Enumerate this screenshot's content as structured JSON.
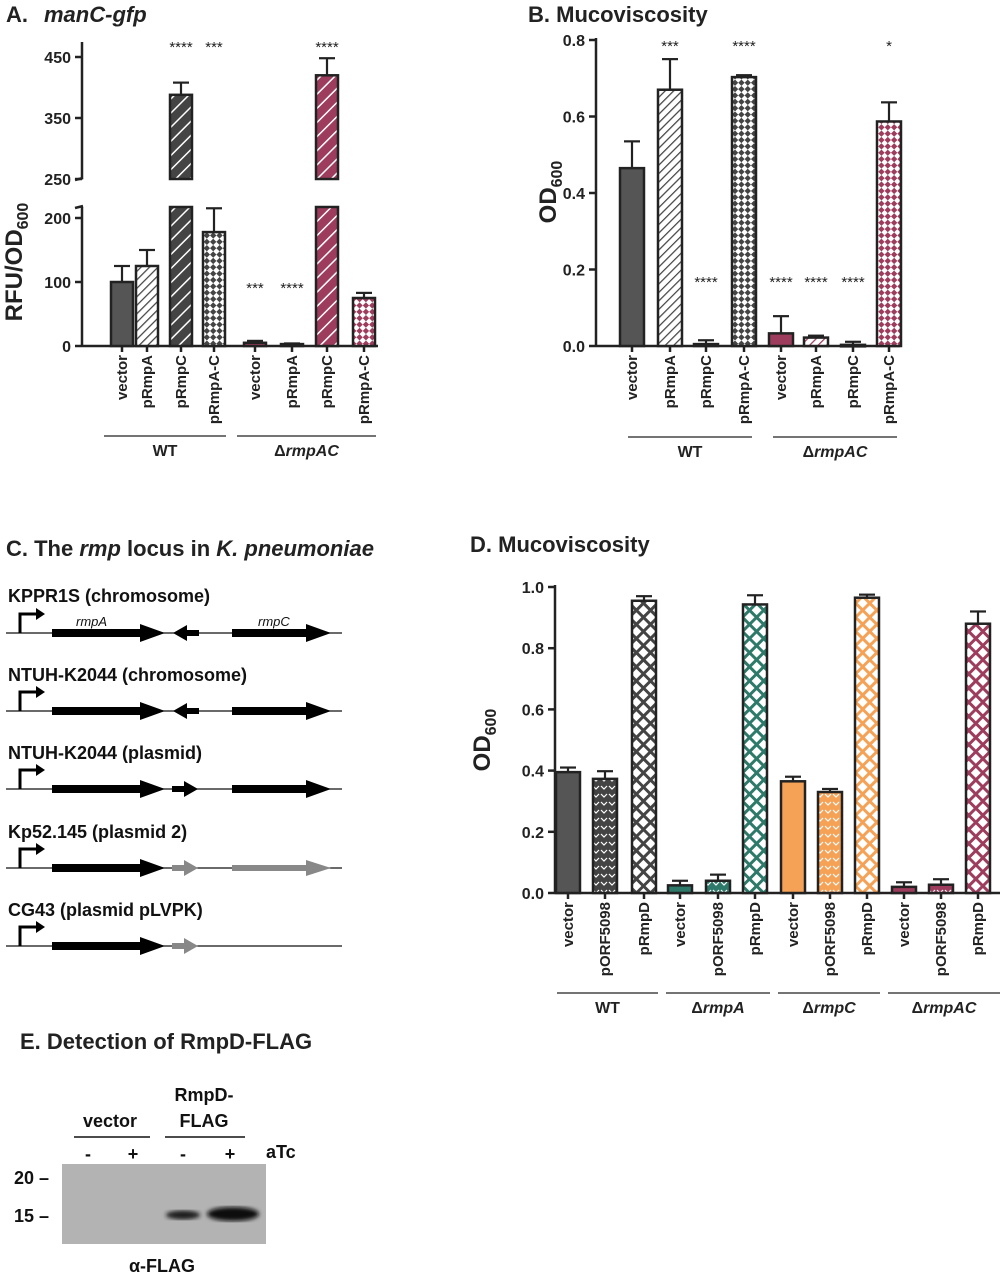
{
  "panelA": {
    "title_prefix": "A.",
    "title": "manC-gfp",
    "ylabel_main": "RFU/OD",
    "ylabel_sub": "600"
  },
  "panelB": {
    "title": "B.  Mucoviscosity",
    "ylabel_main": "OD",
    "ylabel_sub": "600"
  },
  "panelC": {
    "title_1": "C. The ",
    "title_2": "rmp",
    "title_3": " locus in ",
    "title_4": "K. pneumoniae",
    "strains": [
      "KPPR1S (chromosome)",
      "NTUH-K2044 (chromosome)",
      "NTUH-K2044 (plasmid)",
      "Kp52.145 (plasmid 2)",
      "CG43 (plasmid pLVPK)"
    ],
    "gene_rmpA": "rmpA",
    "gene_rmpC": "rmpC"
  },
  "panelD": {
    "title": "D.  Mucoviscosity",
    "ylabel_main": "OD",
    "ylabel_sub": "600"
  },
  "panelE": {
    "title": "E.  Detection of RmpD-FLAG",
    "group_vector": "vector",
    "group_rmpd_1": "RmpD-",
    "group_rmpd_2": "FLAG",
    "lane_signs": [
      "-",
      "+",
      "-",
      "+"
    ],
    "atc_label": "aTc",
    "mw_markers": [
      "20 –",
      "15 –"
    ],
    "antibody_label": "α-FLAG"
  },
  "colors": {
    "wt": "#555555",
    "dA": "#2e7a6a",
    "dC": "#f5a256",
    "dAC": "#9e3c5e"
  },
  "chart_data": [
    {
      "panel": "A",
      "type": "bar",
      "title": "manC-gfp",
      "ylabel": "RFU/OD600",
      "y_axis_break": [
        200,
        250
      ],
      "ylim": [
        0,
        450
      ],
      "yticks_lower": [
        "0",
        "100",
        "200"
      ],
      "yticks_upper": [
        "250",
        "350",
        "450"
      ],
      "categories": [
        "vector",
        "pRmpA",
        "pRmpC",
        "pRmpA-C",
        "vector",
        "pRmpA",
        "pRmpC",
        "pRmpA-C"
      ],
      "groups": [
        {
          "label": "WT",
          "start": 0,
          "end": 3
        },
        {
          "label": "ΔrmpAC",
          "start": 4,
          "end": 7
        }
      ],
      "values": [
        100,
        125,
        388,
        178,
        5,
        3,
        420,
        75
      ],
      "errors": [
        25,
        25,
        20,
        24,
        3,
        1,
        28,
        8
      ],
      "significance": [
        "",
        "",
        "****",
        "***",
        "***",
        "****",
        "****",
        ""
      ]
    },
    {
      "panel": "B",
      "type": "bar",
      "title": "Mucoviscosity",
      "ylabel": "OD600",
      "ylim": [
        0,
        0.8
      ],
      "yticks": [
        "0.0",
        "0.2",
        "0.4",
        "0.6",
        "0.8"
      ],
      "categories": [
        "vector",
        "pRmpA",
        "pRmpC",
        "pRmpA-C",
        "vector",
        "pRmpA",
        "pRmpC",
        "pRmpA-C"
      ],
      "groups": [
        {
          "label": "WT",
          "start": 0,
          "end": 3
        },
        {
          "label": "ΔrmpAC",
          "start": 4,
          "end": 7
        }
      ],
      "values": [
        0.465,
        0.67,
        0.005,
        0.703,
        0.033,
        0.022,
        0.003,
        0.587
      ],
      "errors": [
        0.07,
        0.08,
        0.01,
        0.005,
        0.045,
        0.005,
        0.008,
        0.05
      ],
      "significance": [
        "",
        "***",
        "****",
        "****",
        "****",
        "****",
        "****",
        "*"
      ]
    },
    {
      "panel": "D",
      "type": "bar",
      "title": "Mucoviscosity",
      "ylabel": "OD600",
      "ylim": [
        0,
        1.0
      ],
      "yticks": [
        "0.0",
        "0.2",
        "0.4",
        "0.6",
        "0.8",
        "1.0"
      ],
      "categories": [
        "vector",
        "pORF5098",
        "pRmpD",
        "vector",
        "pORF5098",
        "pRmpD",
        "vector",
        "pORF5098",
        "pRmpD",
        "vector",
        "pORF5098",
        "pRmpD"
      ],
      "groups": [
        {
          "label": "WT",
          "start": 0,
          "end": 2
        },
        {
          "label": "ΔrmpA",
          "start": 3,
          "end": 5
        },
        {
          "label": "ΔrmpC",
          "start": 6,
          "end": 8
        },
        {
          "label": "ΔrmpAC",
          "start": 9,
          "end": 11
        }
      ],
      "values": [
        0.395,
        0.373,
        0.955,
        0.025,
        0.04,
        0.943,
        0.365,
        0.33,
        0.965,
        0.02,
        0.027,
        0.88
      ],
      "errors": [
        0.015,
        0.025,
        0.015,
        0.015,
        0.02,
        0.03,
        0.015,
        0.01,
        0.01,
        0.015,
        0.018,
        0.04
      ]
    }
  ]
}
